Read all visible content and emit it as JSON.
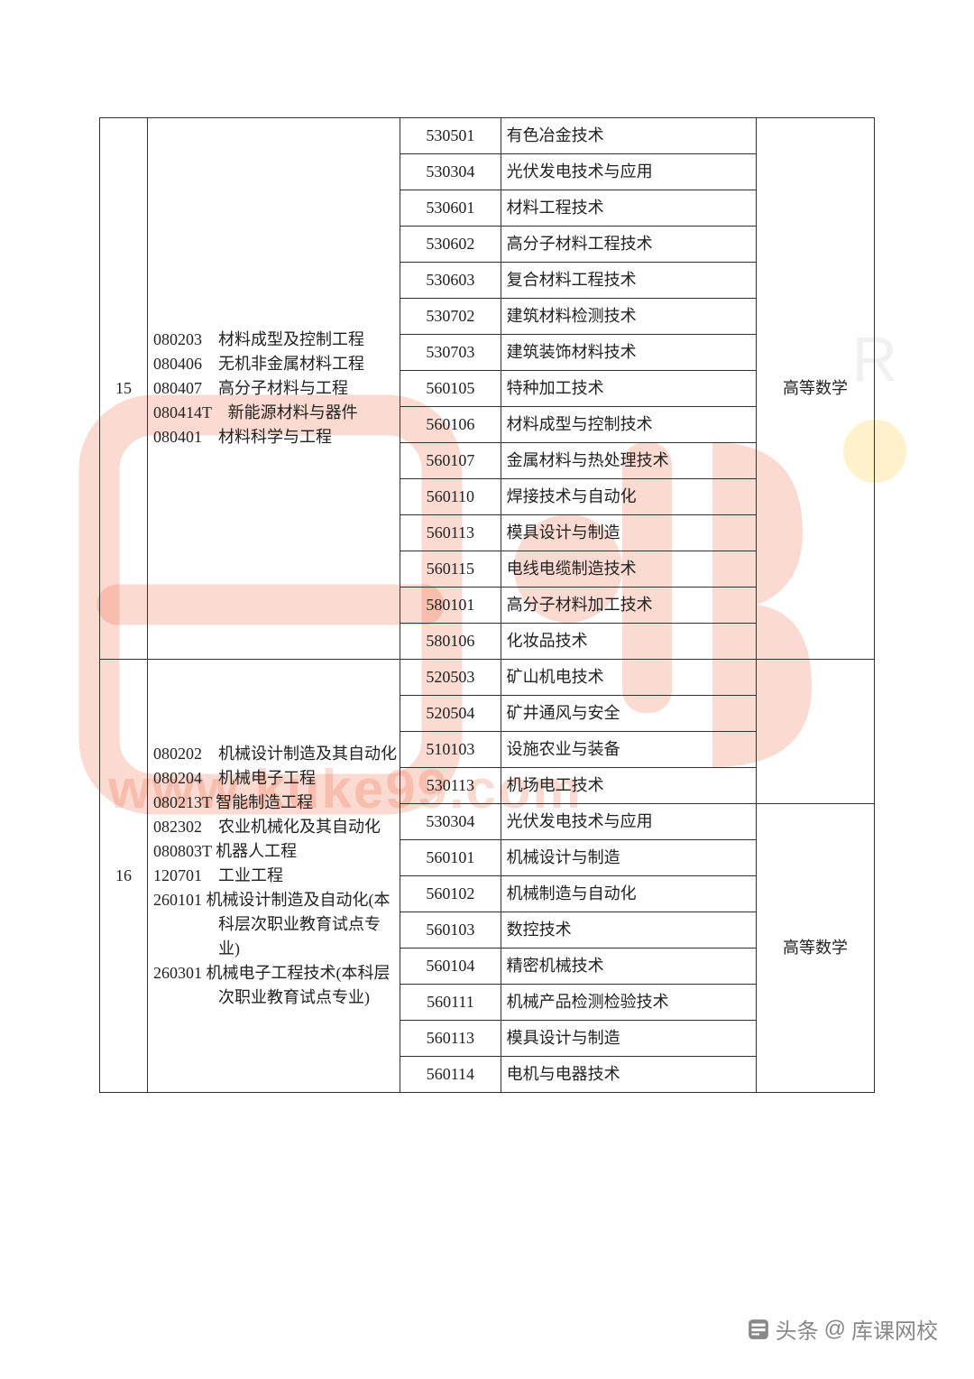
{
  "footer": {
    "prefix": "头条",
    "at": "@",
    "name": "库课网校"
  },
  "watermark": {
    "r": "R",
    "url": "www.kuke99.com"
  },
  "groups": [
    {
      "index": "15",
      "exam": "高等数学",
      "majors": [
        {
          "code": "080203",
          "name": "材料成型及控制工程"
        },
        {
          "code": "080406",
          "name": "无机非金属材料工程"
        },
        {
          "code": "080407",
          "name": "高分子材料与工程"
        },
        {
          "code": "080414T",
          "name": "新能源材料与器件"
        },
        {
          "code": "080401",
          "name": "材料科学与工程"
        }
      ],
      "rows": [
        {
          "code": "530501",
          "name": "有色冶金技术"
        },
        {
          "code": "530304",
          "name": "光伏发电技术与应用"
        },
        {
          "code": "530601",
          "name": "材料工程技术"
        },
        {
          "code": "530602",
          "name": "高分子材料工程技术"
        },
        {
          "code": "530603",
          "name": "复合材料工程技术"
        },
        {
          "code": "530702",
          "name": "建筑材料检测技术"
        },
        {
          "code": "530703",
          "name": "建筑装饰材料技术"
        },
        {
          "code": "560105",
          "name": "特种加工技术"
        },
        {
          "code": "560106",
          "name": "材料成型与控制技术"
        },
        {
          "code": "560107",
          "name": "金属材料与热处理技术"
        },
        {
          "code": "560110",
          "name": "焊接技术与自动化"
        },
        {
          "code": "560113",
          "name": "模具设计与制造"
        },
        {
          "code": "560115",
          "name": "电线电缆制造技术"
        },
        {
          "code": "580101",
          "name": "高分子材料加工技术"
        },
        {
          "code": "580106",
          "name": "化妆品技术"
        }
      ]
    },
    {
      "index": "16",
      "exam": "高等数学",
      "majors_lines": [
        "080202　机械设计制造及其自动化",
        "080204　机械电子工程",
        "080213T 智能制造工程",
        "082302　农业机械化及其自动化",
        "080803T 机器人工程",
        "120701　工业工程",
        "260101 机械设计制造及自动化(本",
        "　　　　科层次职业教育试点专",
        "　　　　业)",
        "260301 机械电子工程技术(本科层",
        "　　　　次职业教育试点专业)"
      ],
      "rows": [
        {
          "code": "520503",
          "name": "矿山机电技术"
        },
        {
          "code": "520504",
          "name": "矿井通风与安全"
        },
        {
          "code": "510103",
          "name": "设施农业与装备"
        },
        {
          "code": "530113",
          "name": "机场电工技术"
        },
        {
          "code": "530304",
          "name": "光伏发电技术与应用"
        },
        {
          "code": "560101",
          "name": "机械设计与制造"
        },
        {
          "code": "560102",
          "name": "机械制造与自动化"
        },
        {
          "code": "560103",
          "name": "数控技术"
        },
        {
          "code": "560104",
          "name": "精密机械技术"
        },
        {
          "code": "560111",
          "name": "机械产品检测检验技术"
        },
        {
          "code": "560113",
          "name": "模具设计与制造"
        },
        {
          "code": "560114",
          "name": "电机与电器技术"
        }
      ],
      "exam_row": 4
    }
  ]
}
